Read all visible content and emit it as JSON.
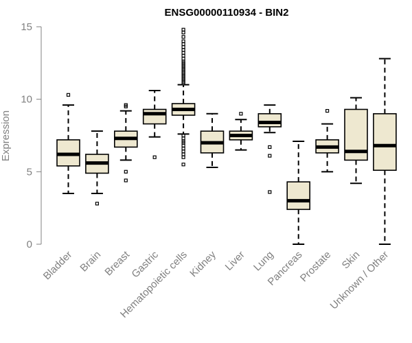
{
  "chart_data": {
    "type": "boxplot",
    "title": "ENSG00000110934 - BIN2",
    "xlabel": "",
    "ylabel": "Expression",
    "ylim": [
      0,
      15
    ],
    "yticks": [
      0,
      5,
      10,
      15
    ],
    "box_fill": "#EEE8D0",
    "median_color": "#000000",
    "axis_color": "#808080",
    "categories": [
      "Bladder",
      "Brain",
      "Breast",
      "Gastric",
      "Hematopoietic cells",
      "Kidney",
      "Liver",
      "Lung",
      "Pancreas",
      "Prostate",
      "Skin",
      "Unknown / Other"
    ],
    "boxes": [
      {
        "name": "Bladder",
        "whisker_low": 3.5,
        "q1": 5.4,
        "median": 6.2,
        "q3": 7.2,
        "whisker_high": 9.6,
        "outliers": [
          10.3
        ]
      },
      {
        "name": "Brain",
        "whisker_low": 3.5,
        "q1": 4.9,
        "median": 5.6,
        "q3": 6.2,
        "whisker_high": 7.8,
        "outliers": [
          2.8
        ]
      },
      {
        "name": "Breast",
        "whisker_low": 5.8,
        "q1": 6.7,
        "median": 7.3,
        "q3": 7.8,
        "whisker_high": 9.2,
        "outliers": [
          9.5,
          9.6,
          5.0,
          4.4
        ]
      },
      {
        "name": "Gastric",
        "whisker_low": 7.4,
        "q1": 8.3,
        "median": 9.0,
        "q3": 9.3,
        "whisker_high": 10.6,
        "outliers": [
          6.0
        ]
      },
      {
        "name": "Hematopoietic cells",
        "whisker_low": 7.6,
        "q1": 8.9,
        "median": 9.3,
        "q3": 9.7,
        "whisker_high": 11.0,
        "outliers": [
          14.8,
          14.6,
          14.3,
          14.0,
          13.8,
          13.6,
          13.4,
          13.2,
          13.0,
          12.8,
          12.6,
          12.5,
          12.4,
          12.3,
          12.2,
          12.1,
          12.0,
          11.9,
          11.8,
          11.7,
          11.6,
          11.5,
          11.4,
          11.3,
          11.2,
          11.1,
          7.5,
          7.3,
          7.1,
          7.0,
          6.8,
          6.6,
          6.4,
          6.2,
          6.0,
          5.5
        ]
      },
      {
        "name": "Kidney",
        "whisker_low": 5.3,
        "q1": 6.3,
        "median": 7.0,
        "q3": 7.8,
        "whisker_high": 9.0,
        "outliers": []
      },
      {
        "name": "Liver",
        "whisker_low": 6.5,
        "q1": 7.2,
        "median": 7.5,
        "q3": 7.8,
        "whisker_high": 8.6,
        "outliers": [
          9.0
        ]
      },
      {
        "name": "Lung",
        "whisker_low": 7.7,
        "q1": 8.1,
        "median": 8.4,
        "q3": 9.0,
        "whisker_high": 9.6,
        "outliers": [
          6.7,
          6.1,
          3.6
        ]
      },
      {
        "name": "Pancreas",
        "whisker_low": 0.0,
        "q1": 2.4,
        "median": 3.0,
        "q3": 4.3,
        "whisker_high": 7.1,
        "outliers": []
      },
      {
        "name": "Prostate",
        "whisker_low": 5.0,
        "q1": 6.3,
        "median": 6.7,
        "q3": 7.2,
        "whisker_high": 8.3,
        "outliers": [
          9.2
        ]
      },
      {
        "name": "Skin",
        "whisker_low": 4.2,
        "q1": 5.8,
        "median": 6.4,
        "q3": 9.3,
        "whisker_high": 10.1,
        "outliers": []
      },
      {
        "name": "Unknown / Other",
        "whisker_low": 0.0,
        "q1": 5.1,
        "median": 6.8,
        "q3": 9.0,
        "whisker_high": 12.8,
        "outliers": []
      }
    ]
  }
}
